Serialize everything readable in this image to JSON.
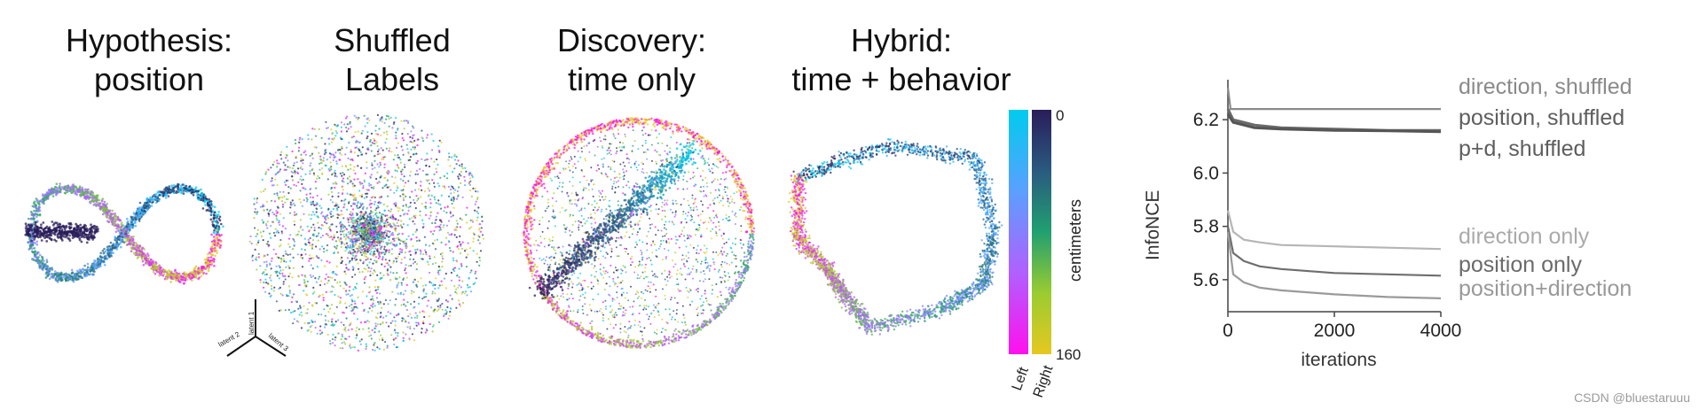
{
  "panels": [
    {
      "title": "Hypothesis:\nposition"
    },
    {
      "title": "Shuffled\nLabels"
    },
    {
      "title": "Discovery:\ntime only"
    },
    {
      "title": "Hybrid:\ntime + behavior"
    }
  ],
  "axes_triad": {
    "labels": [
      "latent 1",
      "latent 2",
      "latent 3"
    ]
  },
  "colorbar": {
    "label": "centimeters",
    "tick_top": "0",
    "tick_bottom": "160",
    "left_label": "Left",
    "right_label": "Right",
    "left_gradient": [
      "#00ccee",
      "#5aa0ff",
      "#b060ff",
      "#ff10ee"
    ],
    "right_gradient": [
      "#2a1d5a",
      "#2a5a80",
      "#20a070",
      "#9acc30",
      "#e6c820"
    ]
  },
  "chart_data": {
    "type": "line",
    "title": "",
    "xlabel": "iterations",
    "ylabel": "InfoNCE",
    "xlim": [
      0,
      4000
    ],
    "ylim": [
      5.48,
      6.35
    ],
    "xticks": [
      "0",
      "2000",
      "4000"
    ],
    "yticks": [
      "5.6",
      "5.8",
      "6.0",
      "6.2"
    ],
    "grid": false,
    "legend": "right",
    "series": [
      {
        "name": "direction, shuffled",
        "color": "#8a8a8a",
        "x": [
          0,
          50,
          200,
          4000
        ],
        "y": [
          6.32,
          6.24,
          6.24,
          6.24
        ]
      },
      {
        "name": "position, shuffled",
        "color": "#6a6a6a",
        "x": [
          0,
          100,
          500,
          1000,
          2000,
          3000,
          4000
        ],
        "y": [
          6.24,
          6.2,
          6.18,
          6.17,
          6.165,
          6.16,
          6.16
        ]
      },
      {
        "name": "p+d, shuffled",
        "color": "#555555",
        "x": [
          0,
          100,
          500,
          1000,
          2000,
          3000,
          4000
        ],
        "y": [
          6.22,
          6.19,
          6.17,
          6.165,
          6.16,
          6.158,
          6.155
        ]
      },
      {
        "name": "direction only",
        "color": "#b5b5b5",
        "x": [
          0,
          100,
          300,
          600,
          1000,
          2000,
          3000,
          4000
        ],
        "y": [
          5.86,
          5.78,
          5.75,
          5.74,
          5.73,
          5.725,
          5.72,
          5.715
        ]
      },
      {
        "name": "position only",
        "color": "#6e6e6e",
        "x": [
          0,
          100,
          300,
          600,
          1000,
          2000,
          3000,
          4000
        ],
        "y": [
          5.8,
          5.7,
          5.67,
          5.65,
          5.64,
          5.625,
          5.62,
          5.615
        ]
      },
      {
        "name": "position+direction",
        "color": "#9a9a9a",
        "x": [
          0,
          100,
          300,
          600,
          1000,
          2000,
          3000,
          4000
        ],
        "y": [
          5.78,
          5.62,
          5.59,
          5.57,
          5.56,
          5.545,
          5.535,
          5.53
        ]
      }
    ]
  },
  "credit": "CSDN @bluestaruuu"
}
